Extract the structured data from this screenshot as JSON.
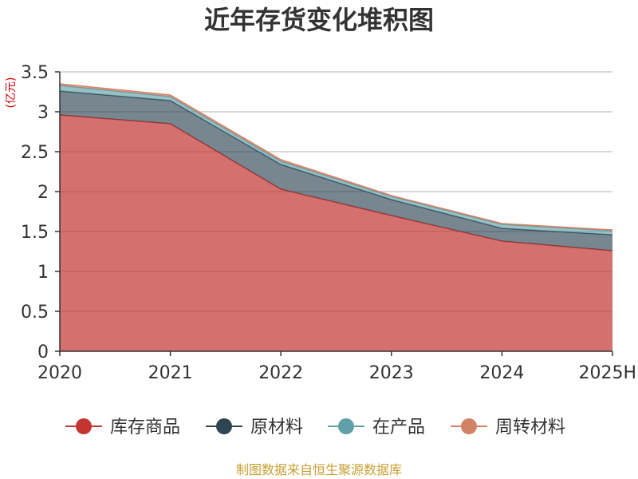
{
  "chart_data": {
    "type": "area",
    "stacked": true,
    "title": "近年存货变化堆积图",
    "ylabel": "(亿元)",
    "categories": [
      "2020",
      "2021",
      "2022",
      "2023",
      "2024",
      "2025H"
    ],
    "ylim": [
      0,
      3.5
    ],
    "yticks": [
      "0",
      "0.5",
      "1",
      "1.5",
      "2",
      "2.5",
      "3",
      "3.5"
    ],
    "grid": true,
    "legend_position": "bottom",
    "series": [
      {
        "name": "库存商品",
        "values": [
          2.96,
          2.85,
          2.03,
          1.7,
          1.38,
          1.26
        ],
        "color": "#c23531"
      },
      {
        "name": "原材料",
        "values": [
          0.3,
          0.29,
          0.31,
          0.2,
          0.16,
          0.2
        ],
        "color": "#2f4554"
      },
      {
        "name": "在产品",
        "values": [
          0.07,
          0.05,
          0.04,
          0.04,
          0.05,
          0.05
        ],
        "color": "#61a0a8"
      },
      {
        "name": "周转材料",
        "values": [
          0.02,
          0.02,
          0.02,
          0.01,
          0.01,
          0.01
        ],
        "color": "#d48265"
      }
    ],
    "source": "制图数据来自恒生聚源数据库"
  }
}
